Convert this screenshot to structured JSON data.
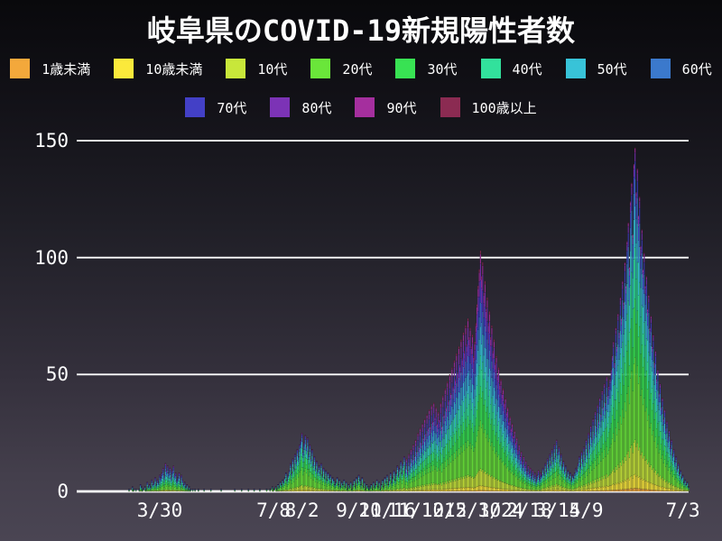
{
  "title": "岐阜県のCOVID-19新規陽性者数",
  "legend": {
    "row1": [
      "1歳未満",
      "10歳未満",
      "10代",
      "20代",
      "30代",
      "40代",
      "50代",
      "60代"
    ],
    "row2": [
      "70代",
      "80代",
      "90代",
      "100歳以上"
    ]
  },
  "chart_data": {
    "type": "bar",
    "stacked": true,
    "title": "岐阜県のCOVID-19新規陽性者数",
    "xlabel": "",
    "ylabel": "",
    "ylim": [
      0,
      150
    ],
    "y_ticks": [
      0,
      50,
      100,
      150
    ],
    "grid": "horizontal-white-lines",
    "legend_position": "top-two-rows",
    "start_date": "2020-03-01",
    "x_ticks": [
      {
        "label": "3/30",
        "day": 29
      },
      {
        "label": "7/8",
        "day": 129
      },
      {
        "label": "8/2",
        "day": 154
      },
      {
        "label": "9/21",
        "day": 204
      },
      {
        "label": "10/16",
        "day": 229
      },
      {
        "label": "11/10",
        "day": 254
      },
      {
        "label": "12/5",
        "day": 279
      },
      {
        "label": "12/30",
        "day": 304
      },
      {
        "label": "1/24",
        "day": 329
      },
      {
        "label": "2/18",
        "day": 354
      },
      {
        "label": "3/15",
        "day": 379
      },
      {
        "label": "4/9",
        "day": 404
      },
      {
        "label": "7/3",
        "day": 489
      }
    ],
    "series_names": [
      "1歳未満",
      "10歳未満",
      "10代",
      "20代",
      "30代",
      "40代",
      "50代",
      "60代",
      "70代",
      "80代",
      "90代",
      "100歳以上"
    ],
    "series_colors": [
      "#f3a83b",
      "#fbe93b",
      "#c8e73a",
      "#6ae63a",
      "#38e253",
      "#32e19c",
      "#38c3d8",
      "#3b79cc",
      "#4340c6",
      "#7c33b6",
      "#a52f9e",
      "#8b2b52"
    ],
    "age_profiles": [
      {
        "from_day": 0,
        "to_day": 121,
        "shares": [
          0.005,
          0.015,
          0.05,
          0.18,
          0.15,
          0.16,
          0.15,
          0.12,
          0.09,
          0.05,
          0.025,
          0.005
        ]
      },
      {
        "from_day": 122,
        "to_day": 244,
        "shares": [
          0.005,
          0.025,
          0.08,
          0.3,
          0.19,
          0.14,
          0.11,
          0.07,
          0.045,
          0.02,
          0.01,
          0.005
        ]
      },
      {
        "from_day": 245,
        "to_day": 364,
        "shares": [
          0.005,
          0.02,
          0.07,
          0.2,
          0.14,
          0.13,
          0.12,
          0.1,
          0.09,
          0.07,
          0.04,
          0.015
        ]
      },
      {
        "from_day": 365,
        "to_day": 494,
        "shares": [
          0.01,
          0.04,
          0.1,
          0.24,
          0.17,
          0.15,
          0.12,
          0.08,
          0.05,
          0.025,
          0.012,
          0.003
        ]
      }
    ],
    "daily_totals": [
      0,
      0,
      1,
      0,
      0,
      2,
      1,
      0,
      1,
      0,
      0,
      1,
      3,
      2,
      1,
      0,
      2,
      1,
      4,
      2,
      3,
      2,
      5,
      3,
      4,
      6,
      3,
      5,
      4,
      7,
      6,
      8,
      10,
      7,
      12,
      9,
      11,
      8,
      10,
      6,
      9,
      11,
      7,
      8,
      5,
      6,
      8,
      4,
      7,
      5,
      3,
      4,
      2,
      3,
      1,
      2,
      1,
      0,
      1,
      0,
      1,
      0,
      0,
      1,
      0,
      0,
      0,
      0,
      1,
      0,
      0,
      0,
      0,
      0,
      1,
      0,
      0,
      0,
      0,
      0,
      0,
      0,
      0,
      1,
      0,
      0,
      0,
      0,
      0,
      0,
      0,
      0,
      0,
      0,
      0,
      1,
      0,
      0,
      0,
      0,
      0,
      1,
      0,
      0,
      0,
      0,
      0,
      1,
      0,
      0,
      0,
      0,
      1,
      0,
      0,
      0,
      0,
      1,
      0,
      0,
      0,
      0,
      0,
      1,
      0,
      0,
      1,
      0,
      2,
      1,
      0,
      2,
      1,
      3,
      2,
      4,
      3,
      5,
      4,
      6,
      8,
      5,
      7,
      9,
      12,
      8,
      14,
      10,
      16,
      13,
      18,
      15,
      20,
      22,
      25,
      17,
      21,
      24,
      19,
      23,
      16,
      20,
      14,
      18,
      12,
      15,
      10,
      13,
      9,
      11,
      8,
      12,
      7,
      10,
      6,
      9,
      5,
      8,
      6,
      7,
      4,
      6,
      5,
      3,
      4,
      6,
      3,
      5,
      2,
      4,
      3,
      5,
      2,
      4,
      1,
      3,
      2,
      4,
      1,
      3,
      5,
      2,
      6,
      4,
      7,
      5,
      3,
      6,
      2,
      4,
      1,
      3,
      2,
      1,
      2,
      3,
      1,
      4,
      2,
      3,
      5,
      2,
      4,
      1,
      3,
      5,
      2,
      6,
      4,
      7,
      3,
      5,
      8,
      4,
      6,
      9,
      5,
      8,
      11,
      7,
      10,
      13,
      8,
      12,
      15,
      10,
      14,
      9,
      16,
      12,
      18,
      14,
      20,
      15,
      22,
      17,
      25,
      19,
      27,
      21,
      29,
      23,
      31,
      25,
      33,
      27,
      35,
      28,
      37,
      30,
      38,
      32,
      36,
      29,
      34,
      31,
      38,
      28,
      41,
      33,
      44,
      36,
      47,
      39,
      50,
      42,
      53,
      45,
      56,
      48,
      59,
      51,
      62,
      54,
      65,
      57,
      68,
      60,
      71,
      63,
      74,
      66,
      70,
      62,
      67,
      58,
      64,
      72,
      80,
      88,
      95,
      103,
      92,
      98,
      85,
      90,
      78,
      83,
      72,
      77,
      66,
      71,
      60,
      65,
      55,
      58,
      50,
      53,
      46,
      48,
      42,
      44,
      38,
      40,
      34,
      36,
      30,
      32,
      27,
      29,
      24,
      26,
      21,
      23,
      18,
      20,
      15,
      17,
      13,
      15,
      11,
      13,
      9,
      11,
      8,
      10,
      7,
      9,
      6,
      8,
      5,
      7,
      9,
      6,
      8,
      7,
      10,
      8,
      12,
      9,
      14,
      11,
      16,
      12,
      18,
      14,
      20,
      15,
      22,
      17,
      19,
      13,
      16,
      11,
      13,
      9,
      11,
      7,
      9,
      6,
      8,
      5,
      7,
      6,
      8,
      10,
      9,
      12,
      15,
      11,
      17,
      13,
      19,
      15,
      22,
      17,
      25,
      20,
      28,
      23,
      31,
      25,
      34,
      28,
      37,
      30,
      40,
      33,
      43,
      36,
      46,
      38,
      49,
      41,
      45,
      48,
      52,
      58,
      64,
      55,
      70,
      62,
      76,
      68,
      83,
      74,
      90,
      81,
      98,
      88,
      107,
      115,
      96,
      124,
      132,
      110,
      140,
      147,
      128,
      138,
      118,
      126,
      105,
      112,
      95,
      102,
      88,
      92,
      78,
      84,
      70,
      75,
      62,
      67,
      55,
      60,
      48,
      52,
      42,
      46,
      36,
      40,
      31,
      35,
      27,
      30,
      23,
      26,
      19,
      22,
      16,
      18,
      13,
      15,
      10,
      12,
      8,
      9,
      6,
      7,
      4,
      5,
      3,
      4,
      2
    ]
  }
}
